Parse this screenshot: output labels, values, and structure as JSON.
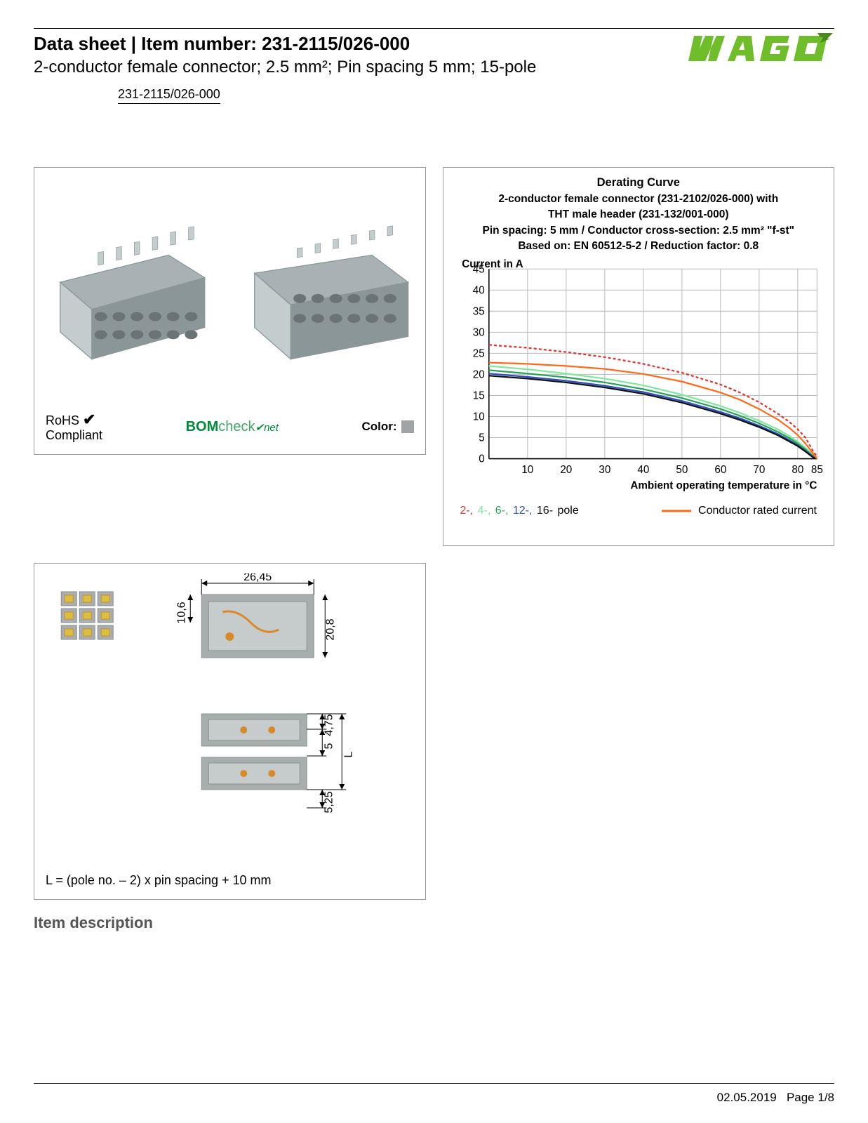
{
  "header": {
    "title_prefix": "Data sheet  |  Item number: ",
    "item_number": "231-2115/026-000",
    "subtitle": "2-conductor female connector; 2.5 mm²; Pin spacing 5 mm; 15-pole",
    "link_text": "231-2115/026-000"
  },
  "logo": {
    "text": "WAGO",
    "fill": "#6fbd2a",
    "shadow": "#4a8a1a"
  },
  "product_panel": {
    "rohs_line1": "RoHS",
    "rohs_line2": "Compliant",
    "check_mark": "✔",
    "bomcheck_prefix": "BOM",
    "bomcheck_mid": "check",
    "bomcheck_suffix": "net",
    "bom_color_prefix": "#008a3a",
    "bom_color_mid": "#3fa66a",
    "color_label": "Color:",
    "color_swatch": "#a0a4a6",
    "connector_color": "#a8b2b4",
    "connector_dark": "#8a9698",
    "connector_light": "#c4ccce"
  },
  "chart": {
    "title": "Derating Curve",
    "line2": "2-conductor female connector (231-2102/026-000) with",
    "line3": "THT male header (231-132/001-000)",
    "line4": "Pin spacing: 5 mm / Conductor cross-section: 2.5 mm² \"f-st\"",
    "line5": "Based on: EN 60512-5-2 / Reduction factor: 0.8",
    "y_label": "Current in A",
    "x_label": "Ambient operating temperature in °C",
    "y_ticks": [
      0,
      5,
      10,
      15,
      20,
      25,
      30,
      35,
      40,
      45
    ],
    "x_ticks": [
      10,
      20,
      30,
      40,
      50,
      60,
      70,
      80,
      85
    ],
    "ylim": [
      0,
      45
    ],
    "xlim": [
      0,
      85
    ],
    "grid_color": "#bcbcbc",
    "axis_color": "#000000",
    "series": [
      {
        "name": "2-pole",
        "color": "#e2342d",
        "dash": "4 3",
        "points": [
          [
            0,
            27
          ],
          [
            10,
            26.3
          ],
          [
            20,
            25.3
          ],
          [
            30,
            24.1
          ],
          [
            40,
            22.5
          ],
          [
            50,
            20.4
          ],
          [
            60,
            17.6
          ],
          [
            65,
            15.7
          ],
          [
            70,
            13.4
          ],
          [
            75,
            10.6
          ],
          [
            78,
            8.6
          ],
          [
            80,
            7.0
          ],
          [
            82,
            5.0
          ],
          [
            84,
            1.8
          ],
          [
            85,
            0.5
          ]
        ]
      },
      {
        "name": "4-pole",
        "color": "#7fe89c",
        "dash": "",
        "points": [
          [
            0,
            22
          ],
          [
            10,
            21.2
          ],
          [
            20,
            20.2
          ],
          [
            30,
            19.0
          ],
          [
            40,
            17.4
          ],
          [
            50,
            15.2
          ],
          [
            60,
            12.5
          ],
          [
            65,
            10.9
          ],
          [
            70,
            9.0
          ],
          [
            75,
            6.9
          ],
          [
            78,
            5.3
          ],
          [
            80,
            4.0
          ],
          [
            82,
            2.6
          ],
          [
            84,
            0.8
          ],
          [
            85,
            0
          ]
        ]
      },
      {
        "name": "6-pole",
        "color": "#2aa35a",
        "dash": "",
        "points": [
          [
            0,
            21
          ],
          [
            10,
            20.2
          ],
          [
            20,
            19.3
          ],
          [
            30,
            18.1
          ],
          [
            40,
            16.5
          ],
          [
            50,
            14.4
          ],
          [
            60,
            11.8
          ],
          [
            65,
            10.2
          ],
          [
            70,
            8.4
          ],
          [
            75,
            6.3
          ],
          [
            78,
            4.8
          ],
          [
            80,
            3.6
          ],
          [
            82,
            2.2
          ],
          [
            84,
            0.6
          ],
          [
            85,
            0
          ]
        ]
      },
      {
        "name": "12-pole",
        "color": "#2b4fbf",
        "dash": "",
        "points": [
          [
            0,
            20.2
          ],
          [
            10,
            19.4
          ],
          [
            20,
            18.5
          ],
          [
            30,
            17.3
          ],
          [
            40,
            15.8
          ],
          [
            50,
            13.7
          ],
          [
            60,
            11.1
          ],
          [
            65,
            9.6
          ],
          [
            70,
            7.8
          ],
          [
            75,
            5.8
          ],
          [
            78,
            4.3
          ],
          [
            80,
            3.2
          ],
          [
            82,
            1.9
          ],
          [
            84,
            0.4
          ],
          [
            85,
            0
          ]
        ]
      },
      {
        "name": "16-pole",
        "color": "#111111",
        "dash": "",
        "points": [
          [
            0,
            19.7
          ],
          [
            10,
            19.0
          ],
          [
            20,
            18.1
          ],
          [
            30,
            16.9
          ],
          [
            40,
            15.4
          ],
          [
            50,
            13.3
          ],
          [
            60,
            10.7
          ],
          [
            65,
            9.2
          ],
          [
            70,
            7.5
          ],
          [
            75,
            5.5
          ],
          [
            78,
            4.0
          ],
          [
            80,
            3.0
          ],
          [
            82,
            1.7
          ],
          [
            84,
            0.3
          ],
          [
            85,
            0
          ]
        ]
      },
      {
        "name": "Conductor rated current",
        "color": "#ff6a1a",
        "dash": "",
        "points": [
          [
            0,
            22.8
          ],
          [
            10,
            22.5
          ],
          [
            20,
            22.0
          ],
          [
            30,
            21.3
          ],
          [
            40,
            20.1
          ],
          [
            50,
            18.3
          ],
          [
            60,
            15.7
          ],
          [
            65,
            14.0
          ],
          [
            70,
            11.8
          ],
          [
            75,
            9.2
          ],
          [
            78,
            7.2
          ],
          [
            80,
            5.6
          ],
          [
            82,
            3.6
          ],
          [
            84,
            1.2
          ],
          [
            85,
            0
          ]
        ]
      }
    ],
    "legend_2": "2-,",
    "legend_4": "4-,",
    "legend_6": "6-,",
    "legend_12": "12-,",
    "legend_16": "16-",
    "legend_pole": " pole",
    "legend_rated": "Conductor rated current",
    "legend_colors": {
      "2": "#e2342d",
      "4": "#7fe89c",
      "6": "#2aa35a",
      "12": "#2b4fbf",
      "16": "#111111",
      "rated": "#ff6a1a"
    }
  },
  "dimensions": {
    "width_label": "26,45",
    "h1_label": "10,6",
    "h2_label": "20,8",
    "d1_label": "4,75",
    "d2_label": "5",
    "d3_label": "5,25",
    "L_label": "L",
    "formula": "L = (pole no. – 2) x pin spacing + 10 mm",
    "gray": "#a8aeae",
    "gray_dark": "#8a9090",
    "gray_light": "#c6cccc",
    "orange": "#d88a2a",
    "yellow": "#d8c040"
  },
  "sections": {
    "item_description": "Item description"
  },
  "footer": {
    "date": "02.05.2019",
    "page": "Page 1/8"
  }
}
